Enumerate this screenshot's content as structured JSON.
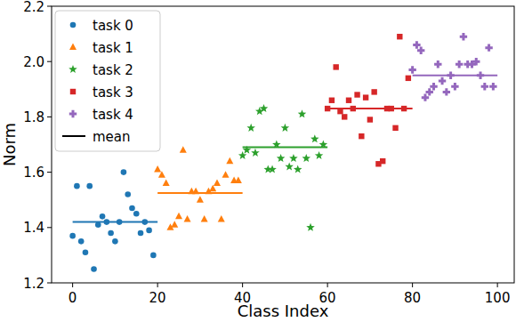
{
  "chart_data": {
    "type": "scatter",
    "x_label": "Class Index",
    "y_label": "Norm",
    "xlim": [
      -4.95,
      103.95
    ],
    "ylim": [
      1.2,
      2.2
    ],
    "xticks": [
      0,
      20,
      40,
      60,
      80,
      100
    ],
    "yticks": [
      1.2,
      1.4,
      1.6,
      1.8,
      {
        "value": 2.0,
        "label": "2.0"
      },
      2.2
    ],
    "legend": "upper left",
    "mean_legend": {
      "name": "mean",
      "color": "#000000"
    },
    "series": [
      {
        "name": "task 0",
        "color": "#1f77b4",
        "marker": "circle",
        "mean": 1.42,
        "mean_range": [
          0,
          20
        ],
        "x": [
          0,
          1,
          2,
          3,
          4,
          5,
          6,
          7,
          8,
          9,
          10,
          11,
          12,
          13,
          14,
          15,
          16,
          17,
          18,
          19
        ],
        "values": [
          1.37,
          1.55,
          1.35,
          1.31,
          1.55,
          1.25,
          1.41,
          1.44,
          1.42,
          1.38,
          1.35,
          1.42,
          1.6,
          1.52,
          1.47,
          1.45,
          1.38,
          1.42,
          1.39,
          1.3
        ]
      },
      {
        "name": "task 1",
        "color": "#ff7f0e",
        "marker": "triangle",
        "mean": 1.525,
        "mean_range": [
          20,
          40
        ],
        "x": [
          20,
          21,
          22,
          23,
          24,
          25,
          26,
          27,
          28,
          29,
          30,
          31,
          32,
          33,
          34,
          35,
          36,
          37,
          38,
          39
        ],
        "values": [
          1.61,
          1.59,
          1.56,
          1.4,
          1.41,
          1.44,
          1.68,
          1.43,
          1.53,
          1.53,
          1.5,
          1.43,
          1.53,
          1.54,
          1.56,
          1.43,
          1.59,
          1.64,
          1.57,
          1.57
        ]
      },
      {
        "name": "task 2",
        "color": "#2ca02c",
        "marker": "star",
        "mean": 1.69,
        "mean_range": [
          40,
          60
        ],
        "x": [
          40,
          41,
          42,
          43,
          44,
          45,
          46,
          47,
          48,
          49,
          50,
          51,
          52,
          53,
          54,
          55,
          56,
          57,
          58,
          59
        ],
        "values": [
          1.66,
          1.68,
          1.76,
          1.67,
          1.82,
          1.83,
          1.61,
          1.61,
          1.7,
          1.65,
          1.76,
          1.62,
          1.65,
          1.61,
          1.81,
          1.65,
          1.4,
          1.72,
          1.66,
          1.7
        ]
      },
      {
        "name": "task 3",
        "color": "#d62728",
        "marker": "square",
        "mean": 1.83,
        "mean_range": [
          60,
          80
        ],
        "x": [
          60,
          61,
          62,
          63,
          64,
          65,
          66,
          67,
          68,
          69,
          70,
          71,
          72,
          73,
          74,
          75,
          76,
          77,
          78,
          79
        ],
        "values": [
          1.83,
          1.86,
          1.98,
          1.82,
          1.8,
          1.86,
          1.83,
          1.88,
          1.73,
          1.87,
          1.79,
          1.89,
          1.63,
          1.64,
          1.83,
          1.83,
          1.76,
          2.09,
          1.83,
          1.94
        ]
      },
      {
        "name": "task 4",
        "color": "#9467bd",
        "marker": "plus",
        "mean": 1.95,
        "mean_range": [
          80,
          100
        ],
        "x": [
          80,
          81,
          82,
          83,
          84,
          85,
          86,
          87,
          88,
          89,
          90,
          91,
          92,
          93,
          94,
          95,
          96,
          97,
          98,
          99
        ],
        "values": [
          1.97,
          2.06,
          2.04,
          1.87,
          1.89,
          1.91,
          1.99,
          1.93,
          1.89,
          1.95,
          1.91,
          1.99,
          2.09,
          1.99,
          1.99,
          2.0,
          1.95,
          1.91,
          2.05,
          1.91
        ]
      }
    ]
  }
}
